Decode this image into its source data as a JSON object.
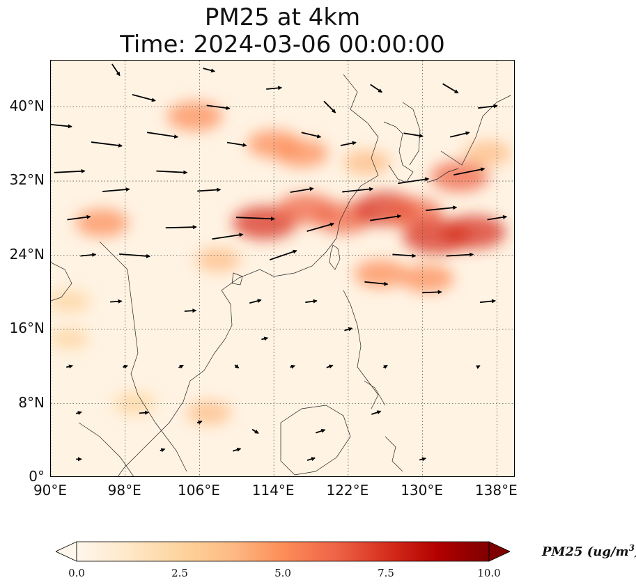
{
  "title": {
    "line1": "PM25 at 4km",
    "line2": "Time: 2024-03-06 00:00:00"
  },
  "map": {
    "projection": "PlateCarree",
    "lon_range": [
      90,
      140
    ],
    "lat_range": [
      0,
      45
    ],
    "gridlines": "dotted",
    "x_ticks": [
      {
        "value": 90,
        "label": "90°E"
      },
      {
        "value": 98,
        "label": "98°E"
      },
      {
        "value": 106,
        "label": "106°E"
      },
      {
        "value": 114,
        "label": "114°E"
      },
      {
        "value": 122,
        "label": "122°E"
      },
      {
        "value": 130,
        "label": "130°E"
      },
      {
        "value": 138,
        "label": "138°E"
      }
    ],
    "y_ticks": [
      {
        "value": 40,
        "label": "40°N"
      },
      {
        "value": 32,
        "label": "32°N"
      },
      {
        "value": 24,
        "label": "24°N"
      },
      {
        "value": 16,
        "label": "16°N"
      },
      {
        "value": 8,
        "label": "8°N"
      },
      {
        "value": 0,
        "label": "0°"
      }
    ],
    "pm25_hotspots": [
      {
        "lon": 105.5,
        "lat": 39.0,
        "value": 5.5
      },
      {
        "lon": 114.0,
        "lat": 36.0,
        "value": 5.0
      },
      {
        "lon": 117.0,
        "lat": 35.0,
        "value": 5.0
      },
      {
        "lon": 113.0,
        "lat": 27.5,
        "value": 7.0
      },
      {
        "lon": 117.5,
        "lat": 29.0,
        "value": 6.0
      },
      {
        "lon": 121.5,
        "lat": 28.0,
        "value": 6.0
      },
      {
        "lon": 126.0,
        "lat": 29.0,
        "value": 7.0
      },
      {
        "lon": 129.0,
        "lat": 28.5,
        "value": 6.0
      },
      {
        "lon": 134.0,
        "lat": 32.5,
        "value": 6.0
      },
      {
        "lon": 131.5,
        "lat": 26.0,
        "value": 7.5
      },
      {
        "lon": 135.5,
        "lat": 26.5,
        "value": 7.0
      },
      {
        "lon": 125.5,
        "lat": 22.0,
        "value": 5.0
      },
      {
        "lon": 130.5,
        "lat": 21.5,
        "value": 5.0
      },
      {
        "lon": 95.5,
        "lat": 27.5,
        "value": 5.0
      },
      {
        "lon": 108.0,
        "lat": 23.5,
        "value": 3.5
      },
      {
        "lon": 92.0,
        "lat": 19.0,
        "value": 3.0
      },
      {
        "lon": 92.0,
        "lat": 15.0,
        "value": 2.5
      },
      {
        "lon": 107.0,
        "lat": 7.0,
        "value": 3.5
      },
      {
        "lon": 99.0,
        "lat": 8.0,
        "value": 3.0
      },
      {
        "lon": 124.0,
        "lat": 34.0,
        "value": 4.0
      },
      {
        "lon": 137.0,
        "lat": 35.0,
        "value": 4.0
      }
    ],
    "wind_vectors": [
      {
        "lon": 91,
        "lat": 38,
        "u": 3,
        "v": -0.3
      },
      {
        "lon": 92,
        "lat": 33,
        "u": 4,
        "v": 0.2
      },
      {
        "lon": 93,
        "lat": 28,
        "u": 3,
        "v": 0.4
      },
      {
        "lon": 96,
        "lat": 36,
        "u": 4,
        "v": -0.5
      },
      {
        "lon": 97,
        "lat": 31,
        "u": 3.5,
        "v": 0.3
      },
      {
        "lon": 100,
        "lat": 41,
        "u": 3,
        "v": -0.8
      },
      {
        "lon": 102,
        "lat": 37,
        "u": 4,
        "v": -0.6
      },
      {
        "lon": 103,
        "lat": 33,
        "u": 4,
        "v": -0.2
      },
      {
        "lon": 104,
        "lat": 27,
        "u": 4,
        "v": 0.1
      },
      {
        "lon": 99,
        "lat": 24,
        "u": 4,
        "v": -0.3
      },
      {
        "lon": 94,
        "lat": 24,
        "u": 2,
        "v": 0.2
      },
      {
        "lon": 108,
        "lat": 40,
        "u": 3,
        "v": -0.4
      },
      {
        "lon": 110,
        "lat": 36,
        "u": 2.5,
        "v": -0.4
      },
      {
        "lon": 107,
        "lat": 31,
        "u": 3,
        "v": 0.2
      },
      {
        "lon": 109,
        "lat": 26,
        "u": 4,
        "v": 0.6
      },
      {
        "lon": 112,
        "lat": 28,
        "u": 5,
        "v": -0.2
      },
      {
        "lon": 115,
        "lat": 24,
        "u": 3.5,
        "v": 1.2
      },
      {
        "lon": 117,
        "lat": 31,
        "u": 3,
        "v": 0.5
      },
      {
        "lon": 119,
        "lat": 27,
        "u": 3.5,
        "v": 1.0
      },
      {
        "lon": 123,
        "lat": 31,
        "u": 4,
        "v": 0.4
      },
      {
        "lon": 126,
        "lat": 28,
        "u": 4,
        "v": 0.6
      },
      {
        "lon": 129,
        "lat": 32,
        "u": 4,
        "v": 0.6
      },
      {
        "lon": 132,
        "lat": 29,
        "u": 4,
        "v": 0.4
      },
      {
        "lon": 135,
        "lat": 33,
        "u": 4,
        "v": 0.8
      },
      {
        "lon": 134,
        "lat": 24,
        "u": 3.5,
        "v": 0.2
      },
      {
        "lon": 128,
        "lat": 24,
        "u": 3,
        "v": -0.2
      },
      {
        "lon": 125,
        "lat": 21,
        "u": 3,
        "v": -0.3
      },
      {
        "lon": 131,
        "lat": 20,
        "u": 2.5,
        "v": 0.1
      },
      {
        "lon": 120,
        "lat": 40,
        "u": 1.5,
        "v": -1.5
      },
      {
        "lon": 125,
        "lat": 42,
        "u": 1.5,
        "v": -1.0
      },
      {
        "lon": 133,
        "lat": 42,
        "u": 2,
        "v": -1.2
      },
      {
        "lon": 137,
        "lat": 40,
        "u": 2.5,
        "v": 0.3
      },
      {
        "lon": 114,
        "lat": 42,
        "u": 2,
        "v": 0.2
      },
      {
        "lon": 118,
        "lat": 37,
        "u": 2.5,
        "v": -0.6
      },
      {
        "lon": 122,
        "lat": 36,
        "u": 2,
        "v": 0.4
      },
      {
        "lon": 129,
        "lat": 37,
        "u": 2.5,
        "v": -0.4
      },
      {
        "lon": 134,
        "lat": 37,
        "u": 2.5,
        "v": 0.6
      },
      {
        "lon": 112,
        "lat": 19,
        "u": 1.5,
        "v": 0.4
      },
      {
        "lon": 118,
        "lat": 19,
        "u": 1.5,
        "v": 0.2
      },
      {
        "lon": 122,
        "lat": 16,
        "u": 1,
        "v": 0.3
      },
      {
        "lon": 105,
        "lat": 18,
        "u": 1.5,
        "v": 0.1
      },
      {
        "lon": 97,
        "lat": 19,
        "u": 1.5,
        "v": 0.1
      },
      {
        "lon": 92,
        "lat": 12,
        "u": 0.8,
        "v": 0.2
      },
      {
        "lon": 98,
        "lat": 12,
        "u": 0.6,
        "v": 0.2
      },
      {
        "lon": 104,
        "lat": 12,
        "u": 0.6,
        "v": 0.3
      },
      {
        "lon": 110,
        "lat": 12,
        "u": 0.5,
        "v": -0.4
      },
      {
        "lon": 116,
        "lat": 12,
        "u": 0.6,
        "v": 0.2
      },
      {
        "lon": 126,
        "lat": 12,
        "u": 0.5,
        "v": 0.3
      },
      {
        "lon": 93,
        "lat": 7,
        "u": 0.7,
        "v": 0.2
      },
      {
        "lon": 100,
        "lat": 7,
        "u": 1.2,
        "v": 0.1
      },
      {
        "lon": 106,
        "lat": 6,
        "u": 0.6,
        "v": 0.2
      },
      {
        "lon": 112,
        "lat": 5,
        "u": 0.8,
        "v": -0.5
      },
      {
        "lon": 119,
        "lat": 5,
        "u": 1.2,
        "v": 0.4
      },
      {
        "lon": 125,
        "lat": 7,
        "u": 1.2,
        "v": 0.4
      },
      {
        "lon": 93,
        "lat": 2,
        "u": 0.7,
        "v": 0.0
      },
      {
        "lon": 102,
        "lat": 3,
        "u": 0.6,
        "v": 0.2
      },
      {
        "lon": 110,
        "lat": 3,
        "u": 1.0,
        "v": 0.3
      },
      {
        "lon": 118,
        "lat": 2,
        "u": 1.0,
        "v": 0.3
      },
      {
        "lon": 130,
        "lat": 2,
        "u": 0.8,
        "v": 0.2
      },
      {
        "lon": 136,
        "lat": 12,
        "u": 0.4,
        "v": 0.2
      },
      {
        "lon": 137,
        "lat": 19,
        "u": 2,
        "v": 0.2
      },
      {
        "lon": 138,
        "lat": 28,
        "u": 2.5,
        "v": 0.4
      },
      {
        "lon": 107,
        "lat": 44,
        "u": 1.5,
        "v": -0.4
      },
      {
        "lon": 97,
        "lat": 44,
        "u": 1,
        "v": -1.5
      },
      {
        "lon": 113,
        "lat": 15,
        "u": 0.8,
        "v": 0.2
      },
      {
        "lon": 120,
        "lat": 12,
        "u": 0.8,
        "v": 0.3
      }
    ]
  },
  "colorbar": {
    "label": "PM25 (ug/m",
    "label_sup": "3",
    "label_tail": ")",
    "vmin": 0.0,
    "vmax": 10.0,
    "ticks": [
      "0.0",
      "2.5",
      "5.0",
      "7.5",
      "10.0"
    ],
    "extend": "both",
    "colormap": "OrRd",
    "colors": [
      "#fff7ec",
      "#fee8c8",
      "#fdd49e",
      "#fdbb84",
      "#fc8d59",
      "#ef6548",
      "#d7301f",
      "#b30000",
      "#7f0000"
    ]
  }
}
